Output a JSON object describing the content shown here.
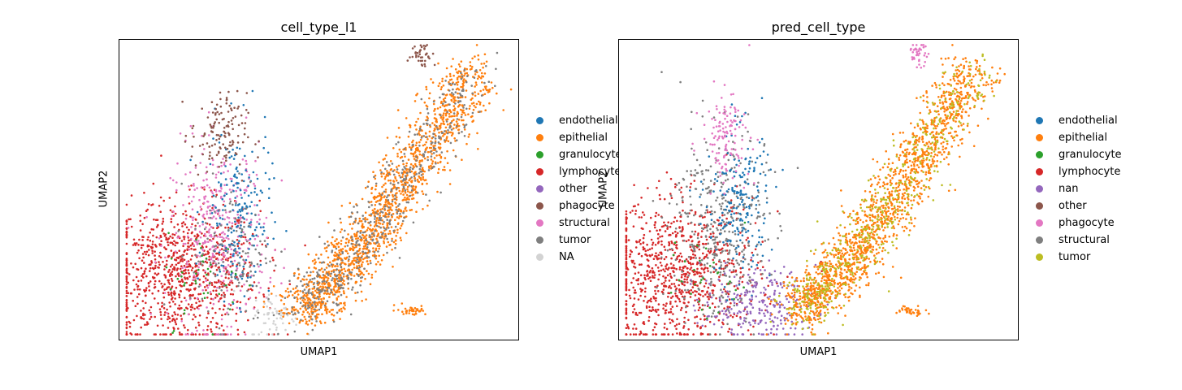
{
  "chart_data": [
    {
      "type": "scatter",
      "title": "cell_type_l1",
      "xlabel": "UMAP1",
      "ylabel": "UMAP2",
      "grid": false,
      "legend": "right-outside",
      "legend_entries": [
        {
          "label": "endothelial",
          "color": "#1f77b4"
        },
        {
          "label": "epithelial",
          "color": "#ff7f0e"
        },
        {
          "label": "granulocyte",
          "color": "#2ca02c"
        },
        {
          "label": "lymphocyte",
          "color": "#d62728"
        },
        {
          "label": "other",
          "color": "#9467bd"
        },
        {
          "label": "phagocyte",
          "color": "#8c564b"
        },
        {
          "label": "structural",
          "color": "#e377c2"
        },
        {
          "label": "tumor",
          "color": "#7f7f7f"
        },
        {
          "label": "NA",
          "color": "#d3d3d3"
        }
      ],
      "clusters": [
        {
          "label": "lymphocyte",
          "center": [
            0.15,
            0.22
          ],
          "spread": [
            0.1,
            0.12
          ],
          "n": 900
        },
        {
          "label": "structural",
          "center": [
            0.25,
            0.35
          ],
          "spread": [
            0.06,
            0.15
          ],
          "n": 380
        },
        {
          "label": "endothelial",
          "center": [
            0.3,
            0.42
          ],
          "spread": [
            0.04,
            0.14
          ],
          "n": 200
        },
        {
          "label": "phagocyte",
          "center": [
            0.25,
            0.68
          ],
          "spread": [
            0.035,
            0.07
          ],
          "n": 130
        },
        {
          "label": "tumor",
          "center": [
            0.28,
            0.3
          ],
          "spread": [
            0.05,
            0.12
          ],
          "n": 130
        },
        {
          "label": "granulocyte",
          "center": [
            0.22,
            0.2
          ],
          "spread": [
            0.05,
            0.08
          ],
          "n": 40
        },
        {
          "label": "NA",
          "center": [
            0.39,
            0.08
          ],
          "spread": [
            0.03,
            0.04
          ],
          "n": 60
        },
        {
          "label": "epithelial",
          "arc": true,
          "n": 1500
        },
        {
          "label": "tumor",
          "arc": true,
          "n": 500
        },
        {
          "label": "phagocyte",
          "center": [
            0.76,
            0.95
          ],
          "spread": [
            0.015,
            0.02
          ],
          "n": 40
        },
        {
          "label": "epithelial",
          "center": [
            0.73,
            0.1
          ],
          "spread": [
            0.02,
            0.008
          ],
          "n": 40
        }
      ]
    },
    {
      "type": "scatter",
      "title": "pred_cell_type",
      "xlabel": "UMAP1",
      "ylabel": "UMAP2",
      "grid": false,
      "legend": "right-outside",
      "legend_entries": [
        {
          "label": "endothelial",
          "color": "#1f77b4"
        },
        {
          "label": "epithelial",
          "color": "#ff7f0e"
        },
        {
          "label": "granulocyte",
          "color": "#2ca02c"
        },
        {
          "label": "lymphocyte",
          "color": "#d62728"
        },
        {
          "label": "nan",
          "color": "#9467bd"
        },
        {
          "label": "other",
          "color": "#8c564b"
        },
        {
          "label": "phagocyte",
          "color": "#e377c2"
        },
        {
          "label": "structural",
          "color": "#7f7f7f"
        },
        {
          "label": "tumor",
          "color": "#bcbd22"
        }
      ],
      "clusters": [
        {
          "label": "lymphocyte",
          "center": [
            0.15,
            0.22
          ],
          "spread": [
            0.1,
            0.12
          ],
          "n": 900
        },
        {
          "label": "structural",
          "center": [
            0.25,
            0.38
          ],
          "spread": [
            0.06,
            0.16
          ],
          "n": 380
        },
        {
          "label": "endothelial",
          "center": [
            0.3,
            0.45
          ],
          "spread": [
            0.04,
            0.13
          ],
          "n": 200
        },
        {
          "label": "phagocyte",
          "center": [
            0.27,
            0.68
          ],
          "spread": [
            0.03,
            0.07
          ],
          "n": 130
        },
        {
          "label": "nan",
          "center": [
            0.35,
            0.12
          ],
          "spread": [
            0.07,
            0.06
          ],
          "n": 260
        },
        {
          "label": "granulocyte",
          "center": [
            0.22,
            0.2
          ],
          "spread": [
            0.05,
            0.08
          ],
          "n": 30
        },
        {
          "label": "epithelial",
          "arc": true,
          "n": 1500
        },
        {
          "label": "tumor",
          "arc": true,
          "n": 500
        },
        {
          "label": "phagocyte",
          "center": [
            0.75,
            0.95
          ],
          "spread": [
            0.012,
            0.02
          ],
          "n": 40
        },
        {
          "label": "epithelial",
          "center": [
            0.73,
            0.1
          ],
          "spread": [
            0.02,
            0.008
          ],
          "n": 40
        }
      ]
    }
  ]
}
